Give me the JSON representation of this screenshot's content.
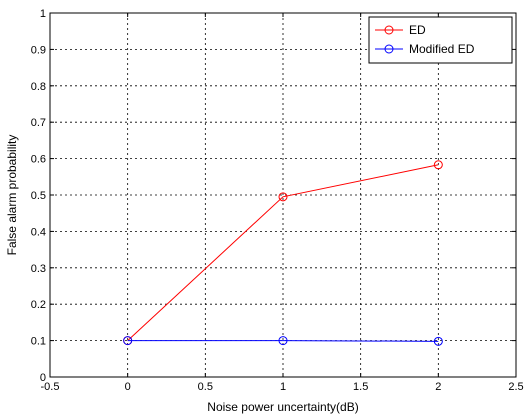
{
  "chart_data": {
    "type": "line",
    "title": "",
    "xlabel": "Noise power uncertainty(dB)",
    "ylabel": "False alarm probability",
    "xlim": [
      -0.5,
      2.5
    ],
    "ylim": [
      0,
      1
    ],
    "xticks": [
      -0.5,
      0,
      0.5,
      1,
      1.5,
      2,
      2.5
    ],
    "yticks": [
      0,
      0.1,
      0.2,
      0.3,
      0.4,
      0.5,
      0.6,
      0.7,
      0.8,
      0.9,
      1
    ],
    "xtick_labels": [
      "-0.5",
      "0",
      "0.5",
      "1",
      "1.5",
      "2",
      "2.5"
    ],
    "ytick_labels": [
      "0",
      "0.1",
      "0.2",
      "0.3",
      "0.4",
      "0.5",
      "0.6",
      "0.7",
      "0.8",
      "0.9",
      "1"
    ],
    "grid": true,
    "legend_position": "top-right",
    "series": [
      {
        "name": "ED",
        "color": "#ff0000",
        "marker": "circle",
        "x": [
          0,
          1,
          2
        ],
        "y": [
          0.1,
          0.495,
          0.583
        ]
      },
      {
        "name": "Modified ED",
        "color": "#0000ff",
        "marker": "circle",
        "x": [
          0,
          1,
          2
        ],
        "y": [
          0.1,
          0.1,
          0.098
        ]
      }
    ]
  }
}
